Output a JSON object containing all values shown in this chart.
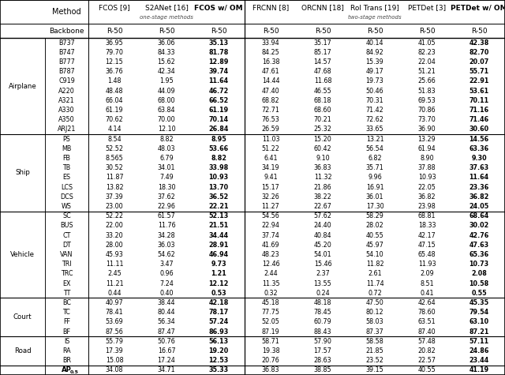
{
  "headers": {
    "col_names": [
      "Method",
      "FCOS [9]",
      "S2ANet [16]",
      "FCOS w/ OM",
      "FRCNN [8]",
      "ORCNN [18]",
      "RoI Trans [19]",
      "PETDet [3]",
      "PETDet w/ OM"
    ],
    "backbone": [
      "Backbone",
      "R-50",
      "R-50",
      "R-50",
      "R-50",
      "R-50",
      "R-50",
      "R-50",
      "R-50"
    ],
    "one_stage_label": "one-stage methods",
    "two_stage_label": "two-stage methods"
  },
  "groups": [
    {
      "name": "Airplane",
      "subcats": [
        "B737",
        "B747",
        "B777",
        "B787",
        "C919",
        "A220",
        "A321",
        "A330",
        "A350",
        "ARJ21"
      ],
      "data": [
        [
          36.95,
          36.06,
          35.13,
          33.94,
          35.17,
          40.14,
          41.05,
          42.38
        ],
        [
          79.7,
          84.33,
          81.78,
          84.25,
          85.17,
          84.92,
          82.23,
          82.7
        ],
        [
          12.15,
          15.62,
          12.89,
          16.38,
          14.57,
          15.39,
          22.04,
          20.07
        ],
        [
          36.76,
          42.34,
          39.74,
          47.61,
          47.68,
          49.17,
          51.21,
          55.71
        ],
        [
          1.48,
          1.95,
          11.64,
          14.44,
          11.68,
          19.73,
          25.66,
          22.91
        ],
        [
          48.48,
          44.09,
          46.72,
          47.4,
          46.55,
          50.46,
          51.83,
          53.61
        ],
        [
          66.04,
          68.0,
          66.52,
          68.82,
          68.18,
          70.31,
          69.53,
          70.11
        ],
        [
          61.19,
          63.84,
          61.19,
          72.71,
          68.6,
          71.42,
          70.86,
          71.16
        ],
        [
          70.62,
          70.0,
          70.14,
          76.53,
          70.21,
          72.62,
          73.7,
          71.46
        ],
        [
          4.14,
          12.1,
          26.84,
          26.59,
          25.32,
          33.65,
          36.9,
          30.6
        ]
      ]
    },
    {
      "name": "Ship",
      "subcats": [
        "PS",
        "MB",
        "FB",
        "TB",
        "ES",
        "LCS",
        "DCS",
        "WS"
      ],
      "data": [
        [
          8.54,
          8.82,
          8.95,
          11.03,
          15.2,
          13.21,
          13.29,
          14.56
        ],
        [
          52.52,
          48.03,
          53.66,
          51.22,
          60.42,
          56.54,
          61.94,
          63.36
        ],
        [
          8.565,
          6.79,
          8.82,
          6.41,
          9.1,
          6.82,
          8.9,
          9.3
        ],
        [
          30.52,
          34.01,
          33.98,
          34.19,
          36.83,
          35.71,
          37.88,
          37.63
        ],
        [
          11.87,
          7.49,
          10.93,
          9.41,
          11.32,
          9.96,
          10.93,
          11.64
        ],
        [
          13.82,
          18.3,
          13.7,
          15.17,
          21.86,
          16.91,
          22.05,
          23.36
        ],
        [
          37.39,
          37.62,
          36.52,
          32.26,
          38.22,
          36.01,
          36.82,
          36.82
        ],
        [
          23.0,
          22.96,
          22.21,
          11.27,
          22.67,
          17.3,
          23.98,
          24.05
        ]
      ]
    },
    {
      "name": "Vehicle",
      "subcats": [
        "SC",
        "BUS",
        "CT",
        "DT",
        "VAN",
        "TRI",
        "TRC",
        "EX",
        "TT"
      ],
      "data": [
        [
          52.22,
          61.57,
          52.13,
          54.56,
          57.62,
          58.29,
          68.81,
          68.64
        ],
        [
          22.0,
          11.76,
          21.51,
          22.94,
          24.4,
          28.02,
          18.33,
          30.02
        ],
        [
          33.2,
          34.28,
          34.44,
          37.74,
          40.84,
          40.55,
          42.17,
          42.76
        ],
        [
          28.0,
          36.03,
          28.91,
          41.69,
          45.2,
          45.97,
          47.15,
          47.63
        ],
        [
          45.93,
          54.62,
          46.94,
          48.23,
          54.01,
          54.1,
          65.48,
          65.36
        ],
        [
          11.11,
          3.47,
          9.73,
          12.46,
          15.46,
          11.82,
          11.93,
          10.73
        ],
        [
          2.45,
          0.96,
          1.21,
          2.44,
          2.37,
          2.61,
          2.09,
          2.08
        ],
        [
          11.21,
          7.24,
          12.12,
          11.35,
          13.55,
          11.74,
          8.51,
          10.58
        ],
        [
          0.44,
          0.4,
          0.53,
          0.32,
          0.24,
          0.72,
          0.41,
          0.55
        ]
      ]
    },
    {
      "name": "Court",
      "subcats": [
        "BC",
        "TC",
        "FF",
        "BF"
      ],
      "data": [
        [
          40.97,
          38.44,
          42.18,
          45.18,
          48.18,
          47.5,
          42.64,
          45.35
        ],
        [
          78.41,
          80.44,
          78.17,
          77.75,
          78.45,
          80.12,
          78.6,
          79.54
        ],
        [
          53.69,
          56.34,
          57.24,
          52.05,
          60.79,
          58.03,
          63.51,
          63.1
        ],
        [
          87.56,
          87.47,
          86.93,
          87.19,
          88.43,
          87.37,
          87.4,
          87.21
        ]
      ]
    },
    {
      "name": "Road",
      "subcats": [
        "IS",
        "RA",
        "BR"
      ],
      "data": [
        [
          55.79,
          50.76,
          56.13,
          58.71,
          57.9,
          58.58,
          57.48,
          57.11
        ],
        [
          17.39,
          16.67,
          19.2,
          19.38,
          17.57,
          21.85,
          20.82,
          24.86
        ],
        [
          15.08,
          17.24,
          12.53,
          20.76,
          28.63,
          23.52,
          22.57,
          23.44
        ]
      ]
    }
  ],
  "ap_row": [
    "34.08",
    "34.71",
    "35.33",
    "36.83",
    "38.85",
    "39.15",
    "40.55",
    "41.19"
  ],
  "bold_data_cols": [
    2,
    7
  ],
  "special_vals": {
    "8.565": "8.565"
  }
}
